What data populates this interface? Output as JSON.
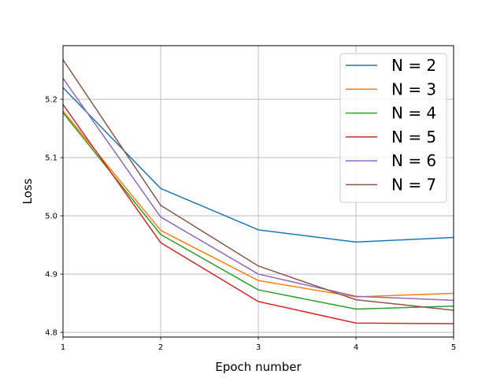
{
  "chart_data": {
    "type": "line",
    "title": "",
    "xlabel": "Epoch number",
    "ylabel": "Loss",
    "x": [
      1,
      2,
      3,
      4,
      5
    ],
    "xlim": [
      1,
      5
    ],
    "ylim": [
      4.792,
      5.292
    ],
    "xticks": [
      "1",
      "2",
      "3",
      "4",
      "5"
    ],
    "yticks": [
      4.8,
      4.9,
      5.0,
      5.1,
      5.2
    ],
    "ytick_labels": [
      "4.8",
      "4.9",
      "5.0",
      "5.1",
      "5.2"
    ],
    "grid": true,
    "legend_position": "top-right",
    "series": [
      {
        "name": "N = 2",
        "color": "#1f77b4",
        "values": [
          5.22,
          5.047,
          4.976,
          4.955,
          4.963
        ]
      },
      {
        "name": "N = 3",
        "color": "#ff7f0e",
        "values": [
          5.18,
          4.975,
          4.889,
          4.861,
          4.867
        ]
      },
      {
        "name": "N = 4",
        "color": "#2ca02c",
        "values": [
          5.177,
          4.968,
          4.873,
          4.84,
          4.845
        ]
      },
      {
        "name": "N = 5",
        "color": "#d62728",
        "values": [
          5.191,
          4.954,
          4.853,
          4.816,
          4.815
        ]
      },
      {
        "name": "N = 6",
        "color": "#9467bd",
        "values": [
          5.236,
          4.998,
          4.9,
          4.862,
          4.855
        ]
      },
      {
        "name": "N = 7",
        "color": "#8c564b",
        "values": [
          5.268,
          5.018,
          4.914,
          4.856,
          4.838
        ]
      }
    ]
  }
}
